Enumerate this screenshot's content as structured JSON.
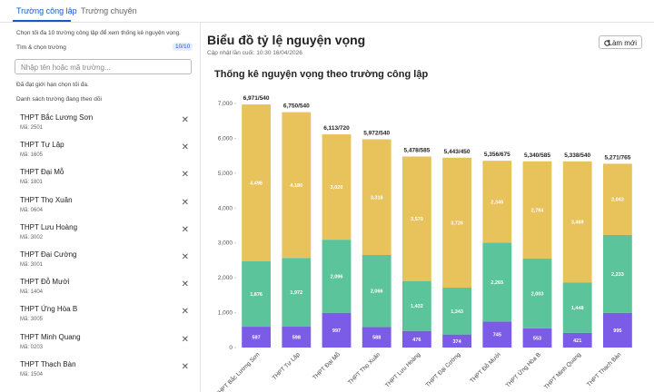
{
  "tabs": [
    "Trường công lập",
    "Trường chuyên"
  ],
  "sidebar": {
    "hint": "Chọn tối đa 10 trường công lập để xem thống kê nguyện vọng.",
    "search_label": "Tìm & chọn trường",
    "count": "10/10",
    "placeholder": "Nhập tên hoặc mã trường...",
    "limit_note": "Đã đạt giới hạn chọn tối đa.",
    "list_title": "Danh sách trường đang theo dõi",
    "schools": [
      {
        "name": "THPT Bắc Lương Sơn",
        "code": "Mã: 2501"
      },
      {
        "name": "THPT Tự Lập",
        "code": "Mã: 1605"
      },
      {
        "name": "THPT Đại Mỗ",
        "code": "Mã: 1801"
      },
      {
        "name": "THPT Thọ Xuân",
        "code": "Mã: 0604"
      },
      {
        "name": "THPT Lưu Hoàng",
        "code": "Mã: 3002"
      },
      {
        "name": "THPT Đại Cường",
        "code": "Mã: 3001"
      },
      {
        "name": "THPT Đỗ Mười",
        "code": "Mã: 1404"
      },
      {
        "name": "THPT Ứng Hòa B",
        "code": "Mã: 3005"
      },
      {
        "name": "THPT Minh Quang",
        "code": "Mã: 0203"
      },
      {
        "name": "THPT Thạch Bàn",
        "code": "Mã: 1504"
      }
    ]
  },
  "header": {
    "title": "Biểu đồ tỷ lệ nguyện vọng",
    "updated": "Cập nhật lần cuối: 10:30 16/04/2026",
    "button": "Làm mới"
  },
  "chart_data": {
    "type": "stacked_bar",
    "title": "Thống kê nguyện vọng theo trường công lập",
    "categories": [
      "THPT Bắc Lương Sơn",
      "THPT Tự Lập",
      "THPT Đại Mỗ",
      "THPT Thọ Xuân",
      "THPT Lưu Hoàng",
      "THPT Đại Cường",
      "THPT Đỗ Mười",
      "THPT Ứng Hòa B",
      "THPT Minh Quang",
      "THPT Thạch Bàn"
    ],
    "series": [
      {
        "color": "#7b5ce6",
        "values": [
          597,
          598,
          997,
          588,
          476,
          374,
          745,
          553,
          421,
          995
        ],
        "value_labels": [
          "597",
          "598",
          "997",
          "588",
          "476",
          "374",
          "745",
          "553",
          "421",
          "995"
        ]
      },
      {
        "color": "#5cc49b",
        "values": [
          1876,
          1972,
          2096,
          2066,
          1432,
          1343,
          2265,
          2003,
          1448,
          2233
        ],
        "value_labels": [
          "1,876",
          "1,972",
          "2,096",
          "2,066",
          "1,432",
          "1,343",
          "2,265",
          "2,003",
          "1,448",
          "2,233"
        ]
      },
      {
        "color": "#e8c25a",
        "values": [
          4498,
          4180,
          3020,
          3318,
          3570,
          3726,
          2346,
          2784,
          3469,
          2043
        ],
        "value_labels": [
          "4,498",
          "4,180",
          "3,020",
          "3,318",
          "3,570",
          "3,726",
          "2,346",
          "2,784",
          "3,469",
          "2,043"
        ]
      }
    ],
    "bar_labels": [
      "6,971/540",
      "6,750/540",
      "6,113/720",
      "5,972/540",
      "5,478/585",
      "5,443/450",
      "5,356/675",
      "5,340/585",
      "5,338/540",
      "5,271/765"
    ],
    "ylim": [
      0,
      7000
    ],
    "yticks": [
      0,
      {
        "value": 1000,
        "label": "1,000"
      },
      {
        "value": 2000,
        "label": "2,000"
      },
      {
        "value": 3000,
        "label": "3,000"
      },
      {
        "value": 4000,
        "label": "4,000"
      },
      {
        "value": 5000,
        "label": "5,000"
      },
      {
        "value": 6000,
        "label": "6,000"
      },
      {
        "value": 7000,
        "label": "7,000"
      }
    ],
    "grid": false
  }
}
